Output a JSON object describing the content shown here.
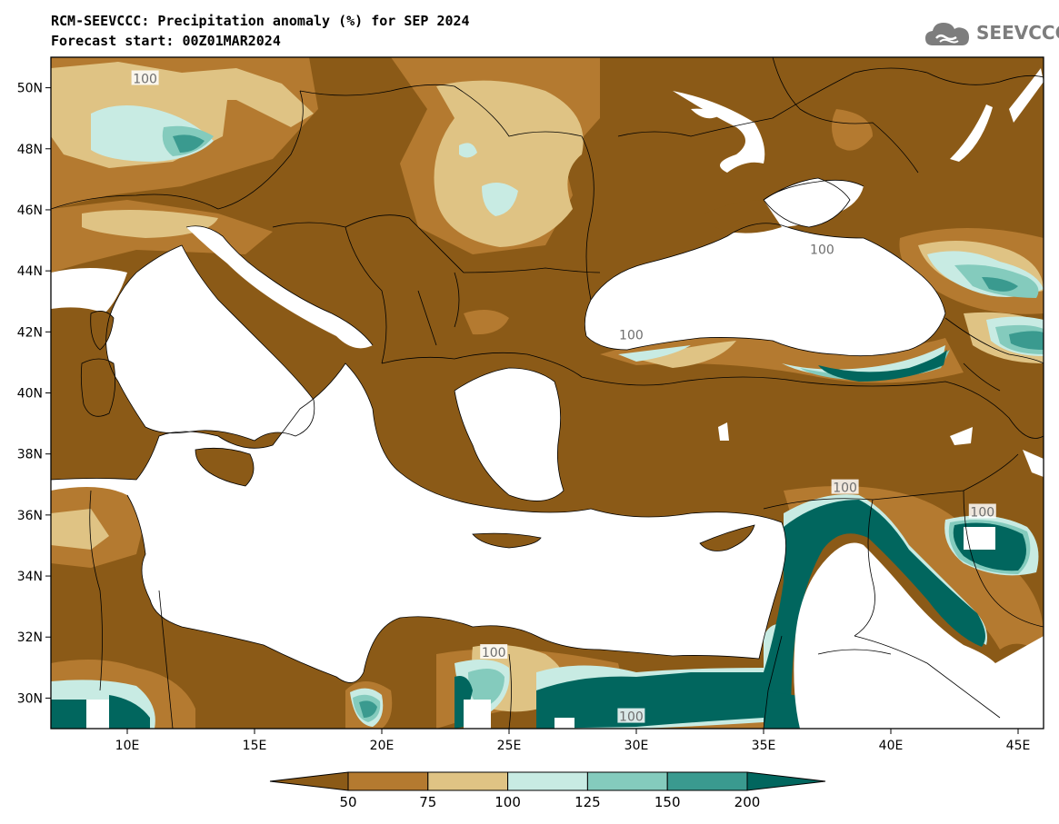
{
  "header": {
    "title_line1": "RCM-SEEVCCC: Precipitation anomaly (%) for SEP 2024",
    "title_line2": "Forecast start: 00Z01MAR2024",
    "logo_text": "SEEVCCC"
  },
  "map": {
    "region": "Mediterranean / Black Sea",
    "lon_range": [
      7,
      46
    ],
    "lat_range": [
      29,
      51
    ],
    "lon_ticks": [
      {
        "value": 10,
        "label": "10E"
      },
      {
        "value": 15,
        "label": "15E"
      },
      {
        "value": 20,
        "label": "20E"
      },
      {
        "value": 25,
        "label": "25E"
      },
      {
        "value": 30,
        "label": "30E"
      },
      {
        "value": 35,
        "label": "35E"
      },
      {
        "value": 40,
        "label": "40E"
      },
      {
        "value": 45,
        "label": "45E"
      }
    ],
    "lat_ticks": [
      {
        "value": 30,
        "label": "30N"
      },
      {
        "value": 32,
        "label": "32N"
      },
      {
        "value": 34,
        "label": "34N"
      },
      {
        "value": 36,
        "label": "36N"
      },
      {
        "value": 38,
        "label": "38N"
      },
      {
        "value": 40,
        "label": "40N"
      },
      {
        "value": 42,
        "label": "42N"
      },
      {
        "value": 44,
        "label": "44N"
      },
      {
        "value": 46,
        "label": "46N"
      },
      {
        "value": 48,
        "label": "48N"
      },
      {
        "value": 50,
        "label": "50N"
      }
    ],
    "contour_label": "100"
  },
  "colorbar": {
    "colors": [
      "#8b5a17",
      "#b47a30",
      "#dfc384",
      "#c8ebe3",
      "#84cbbd",
      "#3a9a8f",
      "#01665e"
    ],
    "labels": [
      "50",
      "75",
      "100",
      "125",
      "150",
      "200"
    ]
  }
}
